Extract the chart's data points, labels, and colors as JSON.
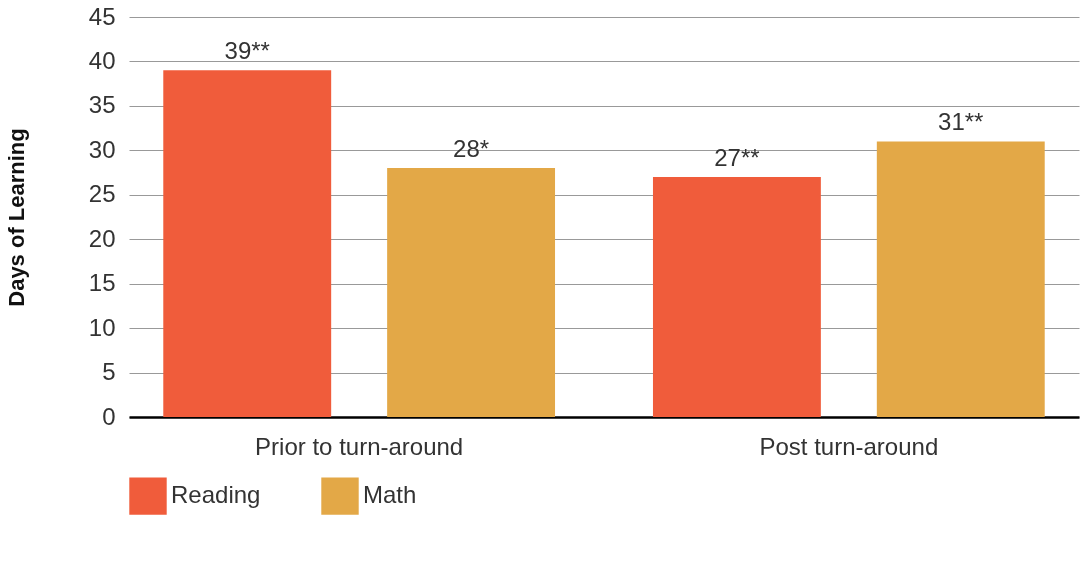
{
  "chart_data": {
    "type": "bar",
    "ylabel": "Days of Learning",
    "categories": [
      "Prior to turn-around",
      "Post turn-around"
    ],
    "series": [
      {
        "name": "Reading",
        "color": "#f05c3b",
        "values": [
          39,
          27
        ],
        "value_labels": [
          "39**",
          "27**"
        ]
      },
      {
        "name": "Math",
        "color": "#e3a847",
        "values": [
          28,
          31
        ],
        "value_labels": [
          "28*",
          "31**"
        ]
      }
    ],
    "ylim": [
      0,
      45
    ],
    "yticks": [
      0,
      5,
      10,
      15,
      20,
      25,
      30,
      35,
      40,
      45
    ],
    "grid": "y",
    "legend": "bottom"
  }
}
